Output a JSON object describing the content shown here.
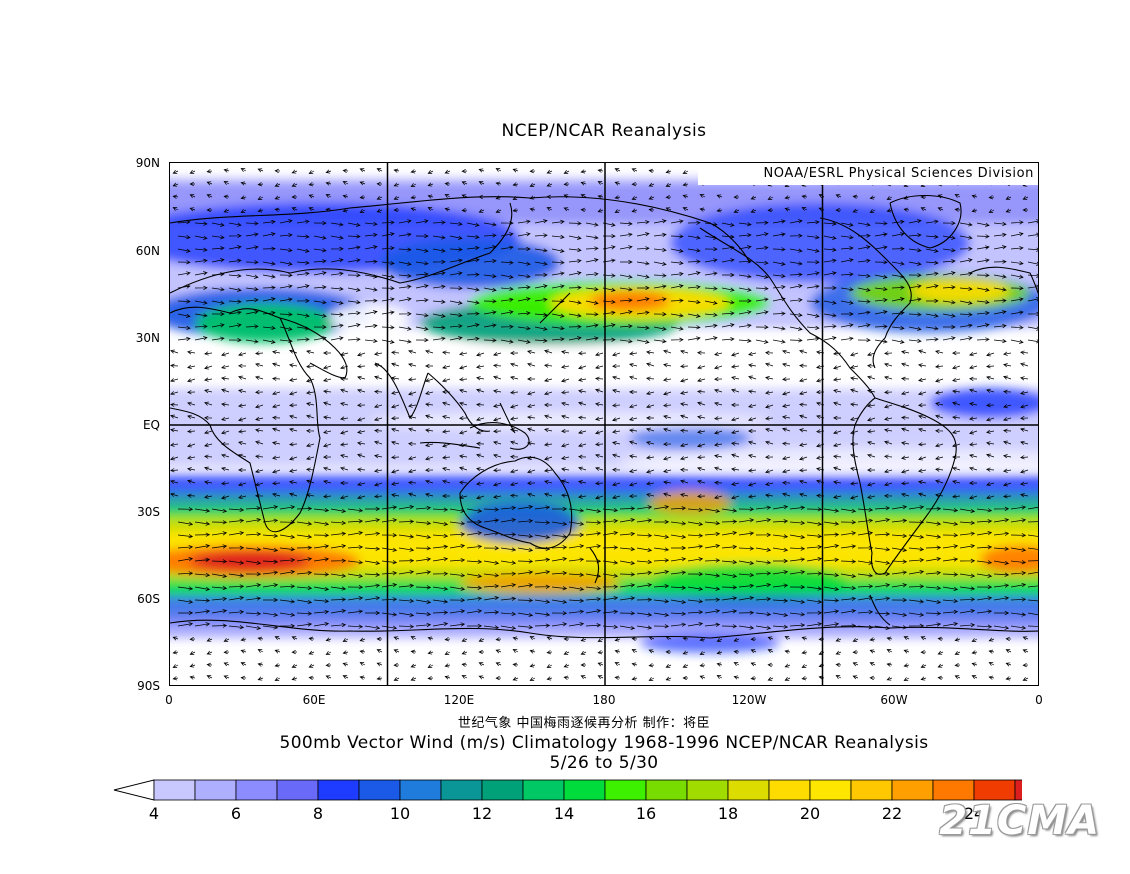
{
  "header": {
    "title": "NCEP/NCAR Reanalysis"
  },
  "map": {
    "credit": "NOAA/ESRL Physical Sciences Division",
    "lat_labels": [
      "90N",
      "60N",
      "30N",
      "EQ",
      "30S",
      "60S",
      "90S"
    ],
    "lon_labels": [
      "0",
      "60E",
      "120E",
      "180",
      "120W",
      "60W",
      "0"
    ]
  },
  "footer": {
    "author_line": "世纪气象  中国梅雨逐候再分析  制作：将臣",
    "subtitle_line1": "500mb Vector Wind (m/s) Climatology 1968-1996 NCEP/NCAR Reanalysis",
    "subtitle_line2": "5/26  to 5/30"
  },
  "colorbar": {
    "labels": [
      "4",
      "6",
      "8",
      "10",
      "12",
      "14",
      "16",
      "18",
      "20",
      "22",
      "24"
    ],
    "colors": [
      "#c8c8ff",
      "#afafff",
      "#8c8cff",
      "#6a6af8",
      "#1e3cff",
      "#1a5ae6",
      "#1f7cdc",
      "#0a9696",
      "#00a078",
      "#00c864",
      "#00dc3c",
      "#3cf000",
      "#78dc00",
      "#a0dc00",
      "#dcdc00",
      "#ffdc00",
      "#ffe600",
      "#ffc800",
      "#ffa000",
      "#ff7800",
      "#f03c00",
      "#dc1e1e"
    ]
  },
  "watermark": "21CMA"
}
